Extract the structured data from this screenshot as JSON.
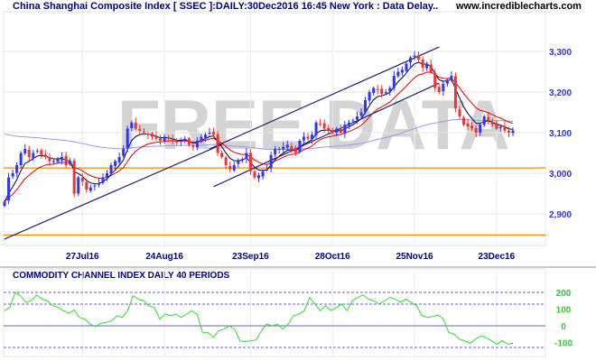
{
  "header": {
    "title": "China Shanghai Composite Index [ SSEC ]:DAILY:30Dec2016 16:45 New York : Data Delay..",
    "site": "www.incrediblecharts.com"
  },
  "watermark": "FREE DATA",
  "colors": {
    "title": "#000080",
    "up": "#3333ff",
    "down": "#ee3333",
    "ema_short": "#000040",
    "ema_mid": "#ee0000",
    "ma_long": "#9999ee",
    "hline": "#ff8800",
    "cci": "#33dd33",
    "trend": "#202070"
  },
  "chart_data": [
    {
      "type": "candlestick",
      "title": "China Shanghai Composite Index [ SSEC ]:DAILY",
      "ylim": [
        2830,
        3340
      ],
      "yticks": [
        2900,
        3000,
        3100,
        3200,
        3300
      ],
      "ytick_labels": [
        "2,900",
        "3,000",
        "3,100",
        "3,200",
        "3,300"
      ],
      "xtick_labels": [
        {
          "label": "27Jul16",
          "index": 19
        },
        {
          "label": "24Aug16",
          "index": 39
        },
        {
          "label": "23Sep16",
          "index": 60
        },
        {
          "label": "28Oct16",
          "index": 80
        },
        {
          "label": "25Nov16",
          "index": 100
        },
        {
          "label": "23Dec16",
          "index": 120
        }
      ],
      "closes": [
        2930,
        2990,
        3000,
        3020,
        3050,
        3060,
        3040,
        3050,
        3055,
        3045,
        3040,
        3030,
        3030,
        3035,
        3040,
        3020,
        3030,
        2950,
        2990,
        2980,
        2960,
        2965,
        2970,
        2975,
        2990,
        3000,
        3020,
        3030,
        3040,
        3060,
        3110,
        3125,
        3110,
        3105,
        3100,
        3095,
        3090,
        3085,
        3080,
        3090,
        3085,
        3080,
        3075,
        3080,
        3085,
        3070,
        3065,
        3080,
        3090,
        3095,
        3100,
        3095,
        3050,
        3040,
        3020,
        3010,
        3020,
        3030,
        3035,
        3050,
        3005,
        2990,
        2995,
        3005,
        3010,
        3045,
        3060,
        3060,
        3065,
        3070,
        3060,
        3050,
        3080,
        3090,
        3085,
        3095,
        3125,
        3120,
        3110,
        3105,
        3100,
        3110,
        3100,
        3120,
        3125,
        3130,
        3140,
        3150,
        3180,
        3200,
        3210,
        3205,
        3195,
        3200,
        3210,
        3240,
        3250,
        3255,
        3270,
        3285,
        3290,
        3280,
        3260,
        3270,
        3250,
        3210,
        3200,
        3220,
        3230,
        3240,
        3160,
        3140,
        3120,
        3115,
        3110,
        3100,
        3120,
        3140,
        3130,
        3120,
        3110,
        3115,
        3105,
        3100,
        3105
      ],
      "horizontal_lines": [
        3013,
        2848
      ],
      "trend_lines": [
        {
          "from": [
            0,
            2838
          ],
          "to": [
            53,
            3071
          ]
        },
        {
          "from": [
            50,
            3060
          ],
          "to": [
            106,
            3311
          ]
        },
        {
          "from": [
            51,
            2967
          ],
          "to": [
            106,
            3222
          ]
        }
      ],
      "moving_averages": [
        {
          "name": "short",
          "period": 5
        },
        {
          "name": "mid",
          "period": 12
        },
        {
          "name": "long",
          "period": 100,
          "seed": 3100
        }
      ]
    },
    {
      "type": "line",
      "title": "COMMODITY CHANNEL INDEX DAILY 40 PERIODS",
      "ylim": [
        -160,
        250
      ],
      "yticks": [
        200,
        100,
        0,
        -100
      ],
      "ytick_labels": [
        "200",
        "100",
        "0",
        "-100"
      ],
      "reference_lines": [
        200,
        130,
        0,
        -130
      ],
      "values": [
        90,
        110,
        200,
        180,
        140,
        150,
        185,
        160,
        150,
        120,
        110,
        90,
        75,
        95,
        50,
        40,
        10,
        -5,
        15,
        20,
        30,
        60,
        50,
        90,
        180,
        160,
        150,
        120,
        110,
        40,
        70,
        60,
        70,
        50,
        70,
        90,
        70,
        -40,
        -40,
        -70,
        -30,
        -20,
        0,
        -20,
        -90,
        -95,
        -90,
        -85,
        -30,
        10,
        0,
        10,
        -20,
        10,
        60,
        70,
        90,
        170,
        130,
        90,
        120,
        90,
        110,
        130,
        90,
        150,
        170,
        185,
        160,
        150,
        130,
        150,
        170,
        160,
        140,
        160,
        140,
        120,
        60,
        50,
        55,
        65,
        40,
        -40,
        -50,
        -80,
        -90,
        -105,
        -80,
        -60,
        -70,
        -90,
        -110,
        -90,
        -110,
        -105
      ]
    }
  ]
}
